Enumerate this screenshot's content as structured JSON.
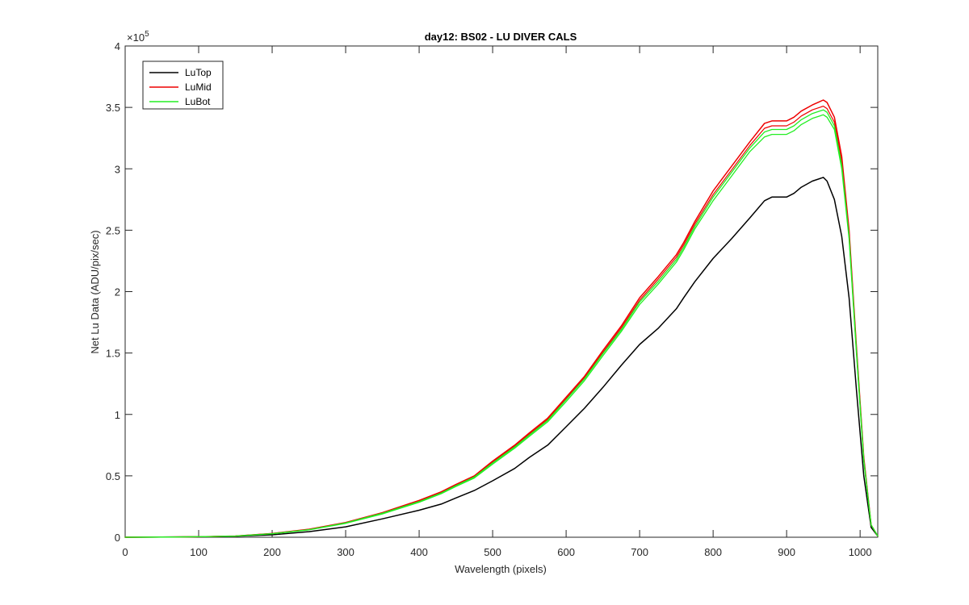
{
  "chart_data": {
    "type": "line",
    "title": "day12: BS02 - LU DIVER CALS",
    "xlabel": "Wavelength (pixels)",
    "ylabel": "Net Lu Data (ADU/pix/sec)",
    "y_exponent_label": "×10",
    "y_exponent_power": "5",
    "y_scale": 100000,
    "xlim": [
      0,
      1024
    ],
    "ylim": [
      0,
      4
    ],
    "xticks": [
      0,
      100,
      200,
      300,
      400,
      500,
      600,
      700,
      800,
      900,
      1000
    ],
    "yticks": [
      0,
      0.5,
      1,
      1.5,
      2,
      2.5,
      3,
      3.5,
      4
    ],
    "ytick_labels": [
      "0",
      "0.5",
      "1",
      "1.5",
      "2",
      "2.5",
      "3",
      "3.5",
      "4"
    ],
    "grid": false,
    "legend": {
      "position": "top-left",
      "entries": [
        "LuTop",
        "LuMid",
        "LuBot"
      ]
    },
    "x": [
      0,
      50,
      100,
      150,
      200,
      250,
      300,
      350,
      400,
      430,
      450,
      475,
      500,
      530,
      550,
      575,
      600,
      625,
      650,
      675,
      700,
      725,
      750,
      760,
      775,
      800,
      825,
      850,
      870,
      880,
      900,
      910,
      920,
      935,
      950,
      955,
      965,
      975,
      985,
      995,
      1005,
      1015,
      1024
    ],
    "series": [
      {
        "name": "LuTop",
        "color": "#000000",
        "width": 1.5,
        "values": [
          0,
          0.001,
          0.003,
          0.008,
          0.02,
          0.045,
          0.085,
          0.15,
          0.22,
          0.27,
          0.32,
          0.38,
          0.46,
          0.56,
          0.65,
          0.75,
          0.9,
          1.05,
          1.22,
          1.4,
          1.57,
          1.7,
          1.86,
          1.95,
          2.08,
          2.27,
          2.43,
          2.6,
          2.74,
          2.77,
          2.77,
          2.8,
          2.85,
          2.9,
          2.93,
          2.9,
          2.75,
          2.45,
          1.95,
          1.2,
          0.5,
          0.08,
          0.01
        ]
      },
      {
        "name": "LuMid",
        "color": "#ee0000",
        "width": 1.5,
        "values": [
          0,
          0.001,
          0.004,
          0.01,
          0.03,
          0.065,
          0.12,
          0.2,
          0.3,
          0.37,
          0.43,
          0.5,
          0.62,
          0.75,
          0.85,
          0.97,
          1.14,
          1.31,
          1.52,
          1.72,
          1.95,
          2.12,
          2.3,
          2.4,
          2.57,
          2.82,
          3.02,
          3.22,
          3.37,
          3.39,
          3.39,
          3.42,
          3.47,
          3.52,
          3.56,
          3.54,
          3.42,
          3.1,
          2.5,
          1.55,
          0.65,
          0.1,
          0.01
        ]
      },
      {
        "name": "LuMid",
        "color": "#ee0000",
        "width": 1.2,
        "values": [
          0,
          0.001,
          0.004,
          0.01,
          0.03,
          0.063,
          0.118,
          0.198,
          0.295,
          0.365,
          0.425,
          0.495,
          0.612,
          0.742,
          0.84,
          0.96,
          1.13,
          1.3,
          1.505,
          1.705,
          1.93,
          2.1,
          2.28,
          2.38,
          2.55,
          2.79,
          2.99,
          3.19,
          3.33,
          3.35,
          3.35,
          3.38,
          3.43,
          3.48,
          3.51,
          3.49,
          3.38,
          3.06,
          2.47,
          1.53,
          0.64,
          0.1,
          0.01
        ]
      },
      {
        "name": "LuBot",
        "color": "#22ee22",
        "width": 1.3,
        "values": [
          0,
          0.001,
          0.004,
          0.01,
          0.029,
          0.062,
          0.116,
          0.195,
          0.29,
          0.36,
          0.42,
          0.49,
          0.605,
          0.735,
          0.833,
          0.952,
          1.12,
          1.29,
          1.495,
          1.69,
          1.915,
          2.08,
          2.26,
          2.36,
          2.53,
          2.77,
          2.97,
          3.17,
          3.3,
          3.32,
          3.32,
          3.35,
          3.4,
          3.45,
          3.48,
          3.46,
          3.35,
          3.03,
          2.45,
          1.52,
          0.63,
          0.1,
          0.01
        ]
      },
      {
        "name": "LuBot",
        "color": "#22ee22",
        "width": 1.3,
        "values": [
          0,
          0.001,
          0.004,
          0.009,
          0.028,
          0.06,
          0.113,
          0.19,
          0.285,
          0.355,
          0.413,
          0.482,
          0.595,
          0.725,
          0.822,
          0.94,
          1.105,
          1.275,
          1.478,
          1.675,
          1.895,
          2.06,
          2.24,
          2.34,
          2.51,
          2.74,
          2.94,
          3.14,
          3.26,
          3.28,
          3.28,
          3.31,
          3.36,
          3.41,
          3.44,
          3.42,
          3.32,
          3.0,
          2.43,
          1.5,
          0.62,
          0.1,
          0.01
        ]
      }
    ]
  }
}
